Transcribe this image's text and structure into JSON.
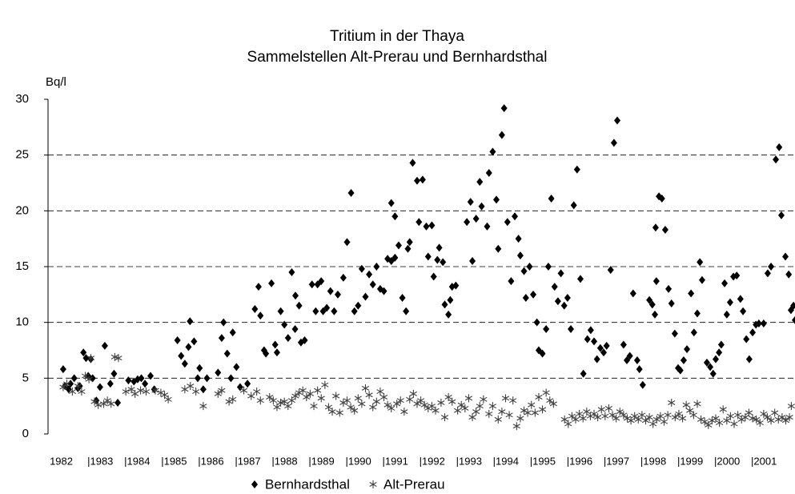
{
  "chart_data": {
    "type": "scatter",
    "title": "Tritium in der Thaya",
    "subtitle": "Sammelstellen Alt-Prerau und Bernhardsthal",
    "y_label": "Bq/l",
    "ylim": [
      0,
      30
    ],
    "yticks": [
      0,
      5,
      10,
      15,
      20,
      25,
      30
    ],
    "xlim": [
      1981.89,
      2002.15
    ],
    "xticks": [
      1982,
      {
        "value": 1983,
        "label": "|1983"
      },
      {
        "value": 1984,
        "label": "|1984"
      },
      {
        "value": 1985,
        "label": "|1985"
      },
      {
        "value": 1986,
        "label": "|1986"
      },
      {
        "value": 1987,
        "label": "|1987"
      },
      {
        "value": 1988,
        "label": "|1988"
      },
      {
        "value": 1989,
        "label": "|1989"
      },
      {
        "value": 1990,
        "label": "|1990"
      },
      {
        "value": 1991,
        "label": "|1991"
      },
      {
        "value": 1992,
        "label": "|1992"
      },
      {
        "value": 1993,
        "label": "|1993"
      },
      {
        "value": 1994,
        "label": "|1994"
      },
      {
        "value": 1995,
        "label": "|1995"
      },
      {
        "value": 1996,
        "label": "|1996"
      },
      {
        "value": 1997,
        "label": "|1997"
      },
      {
        "value": 1998,
        "label": "|1998"
      },
      {
        "value": 1999,
        "label": "|1999"
      },
      {
        "value": 2000,
        "label": "|2000"
      },
      {
        "value": 2001,
        "label": "|2001"
      }
    ],
    "grid": true,
    "legend": "bottom",
    "series": [
      {
        "name": "Bernhardsthal",
        "color": "#000000",
        "marker": "diamond",
        "x": [
          1982.3,
          1982.35,
          1982.45,
          1982.5,
          1982.6,
          1982.7,
          1982.75,
          1982.85,
          1982.92,
          1982.98,
          1983.05,
          1983.1,
          1983.2,
          1983.3,
          1983.43,
          1983.58,
          1983.68,
          1983.78,
          1984.07,
          1984.22,
          1984.32,
          1984.42,
          1984.52,
          1984.67,
          1984.77,
          1985.4,
          1985.5,
          1985.6,
          1985.7,
          1985.74,
          1985.85,
          1985.95,
          1986.0,
          1986.1,
          1986.2,
          1986.5,
          1986.6,
          1986.65,
          1986.75,
          1986.85,
          1986.9,
          1987.0,
          1987.1,
          1987.3,
          1987.5,
          1987.6,
          1987.65,
          1987.75,
          1987.8,
          1987.95,
          1988.05,
          1988.1,
          1988.2,
          1988.3,
          1988.4,
          1988.5,
          1988.59,
          1988.6,
          1988.7,
          1988.75,
          1988.85,
          1989.05,
          1989.15,
          1989.2,
          1989.3,
          1989.35,
          1989.45,
          1989.55,
          1989.65,
          1989.75,
          1989.9,
          1990.0,
          1990.11,
          1990.2,
          1990.3,
          1990.4,
          1990.5,
          1990.6,
          1990.7,
          1990.8,
          1990.9,
          1991.0,
          1991.1,
          1991.2,
          1991.3,
          1991.2,
          1991.3,
          1991.4,
          1991.5,
          1991.6,
          1991.65,
          1991.7,
          1991.78,
          1991.9,
          1991.95,
          1992.05,
          1992.15,
          1992.2,
          1992.3,
          1992.35,
          1992.45,
          1992.5,
          1992.6,
          1992.65,
          1992.75,
          1992.8,
          1992.85,
          1992.95,
          1993.25,
          1993.35,
          1993.4,
          1993.5,
          1993.6,
          1993.65,
          1993.8,
          1993.85,
          1993.95,
          1994.05,
          1994.1,
          1994.2,
          1994.26,
          1994.35,
          1994.45,
          1994.55,
          1994.65,
          1994.7,
          1994.8,
          1994.85,
          1994.95,
          1995.05,
          1995.15,
          1995.2,
          1995.3,
          1995.4,
          1995.46,
          1995.54,
          1995.63,
          1995.72,
          1995.8,
          1995.89,
          1995.98,
          1996.07,
          1996.15,
          1996.24,
          1996.33,
          1996.41,
          1996.52,
          1996.61,
          1996.7,
          1996.78,
          1996.87,
          1996.96,
          1997.04,
          1997.15,
          1997.24,
          1997.33,
          1997.5,
          1997.59,
          1997.67,
          1997.76,
          1997.87,
          1997.93,
          1998.02,
          1998.2,
          1998.28,
          1998.35,
          1998.39,
          1998.37,
          1998.46,
          1998.54,
          1998.63,
          1998.72,
          1998.8,
          1998.89,
          1998.98,
          1999.04,
          1999.13,
          1999.22,
          1999.33,
          1999.41,
          1999.5,
          1999.57,
          1999.63,
          1999.76,
          1999.85,
          1999.93,
          2000.0,
          2000.09,
          2000.15,
          2000.24,
          2000.3,
          2000.39,
          2000.48,
          2000.57,
          2000.67,
          2000.74,
          2000.83,
          2000.91,
          2001.0,
          2001.09,
          2001.17,
          2001.3,
          2001.41,
          2001.5,
          2001.63,
          2001.72,
          2001.78,
          2001.89,
          2001.98,
          2002.04,
          2002.11,
          2002.15
        ],
        "values": [
          5.8,
          4.3,
          4.0,
          4.5,
          5.0,
          4.1,
          4.3,
          7.3,
          6.8,
          5.2,
          6.7,
          5.0,
          3.0,
          4.2,
          7.9,
          4.5,
          5.4,
          2.8,
          4.8,
          4.7,
          4.9,
          5.0,
          4.5,
          5.2,
          4.0,
          8.4,
          7.0,
          6.3,
          7.8,
          10.1,
          8.3,
          5.0,
          5.9,
          4.0,
          5.0,
          5.5,
          8.6,
          10.0,
          7.2,
          5.0,
          9.1,
          6.0,
          4.2,
          4.5,
          11.2,
          13.2,
          10.6,
          7.5,
          7.2,
          13.5,
          8.0,
          7.3,
          11.0,
          9.8,
          8.6,
          14.5,
          9.4,
          12.4,
          11.5,
          8.2,
          8.4,
          13.4,
          11.0,
          13.4,
          13.7,
          11.0,
          11.3,
          12.8,
          11.0,
          12.5,
          14.0,
          17.2,
          21.6,
          11.0,
          11.5,
          14.8,
          12.3,
          14.3,
          13.4,
          15.0,
          13.0,
          12.8,
          15.7,
          15.5,
          15.8,
          20.7,
          19.5,
          16.9,
          12.2,
          11.0,
          16.6,
          17.2,
          24.3,
          22.7,
          19.0,
          22.8,
          18.6,
          15.9,
          18.7,
          14.1,
          15.6,
          16.7,
          15.4,
          11.6,
          10.7,
          12.0,
          13.2,
          13.3,
          19.0,
          20.8,
          15.5,
          19.3,
          22.6,
          20.4,
          18.6,
          23.4,
          25.3,
          21.0,
          16.6,
          26.8,
          29.2,
          19.0,
          13.7,
          19.5,
          17.5,
          16.0,
          14.6,
          12.2,
          15.0,
          12.5,
          10.0,
          7.5,
          7.2,
          9.4,
          15.0,
          21.1,
          13.2,
          11.9,
          14.4,
          11.5,
          12.2,
          9.4,
          20.5,
          23.7,
          13.9,
          5.4,
          8.5,
          9.3,
          8.3,
          6.7,
          7.7,
          7.3,
          7.9,
          14.7,
          26.1,
          28.1,
          8.0,
          6.6,
          7.0,
          12.6,
          6.6,
          5.8,
          4.4,
          12.0,
          11.6,
          10.7,
          13.7,
          18.5,
          21.3,
          21.1,
          18.3,
          13.0,
          11.7,
          9.0,
          5.9,
          5.7,
          6.6,
          7.6,
          12.6,
          9.1,
          10.8,
          15.4,
          13.8,
          6.4,
          6.0,
          5.4,
          6.7,
          7.3,
          8.0,
          13.5,
          10.7,
          11.8,
          14.1,
          14.2,
          12.1,
          11.0,
          8.5,
          6.7,
          9.1,
          9.8,
          9.9,
          9.9,
          14.4,
          15.0,
          24.6,
          25.7,
          19.6,
          15.9,
          14.3,
          11.1,
          11.5,
          10.2
        ]
      },
      {
        "name": "Alt-Prerau",
        "color": "#404040",
        "marker": "star",
        "x": [
          1982.3,
          1982.4,
          1982.55,
          1982.7,
          1982.8,
          1982.9,
          1983.0,
          1983.05,
          1983.15,
          1983.25,
          1983.4,
          1983.5,
          1983.6,
          1983.7,
          1983.8,
          1984.0,
          1984.15,
          1984.25,
          1984.4,
          1984.55,
          1984.8,
          1984.95,
          1985.05,
          1985.15,
          1985.6,
          1985.75,
          1985.9,
          1986.1,
          1986.5,
          1986.6,
          1986.8,
          1986.9,
          1987.2,
          1987.4,
          1987.55,
          1987.65,
          1987.9,
          1988.0,
          1988.1,
          1988.2,
          1988.3,
          1988.4,
          1988.5,
          1988.6,
          1988.7,
          1988.8,
          1988.9,
          1989.0,
          1989.1,
          1989.2,
          1989.3,
          1989.4,
          1989.5,
          1989.6,
          1989.7,
          1989.8,
          1989.9,
          1990.0,
          1990.1,
          1990.2,
          1990.3,
          1990.4,
          1990.5,
          1990.6,
          1990.7,
          1990.8,
          1990.9,
          1991.0,
          1991.1,
          1991.2,
          1991.35,
          1991.45,
          1991.55,
          1991.7,
          1991.8,
          1991.9,
          1992.0,
          1992.1,
          1992.2,
          1992.3,
          1992.4,
          1992.55,
          1992.65,
          1992.75,
          1992.85,
          1993.0,
          1993.1,
          1993.2,
          1993.3,
          1993.4,
          1993.5,
          1993.6,
          1993.7,
          1993.85,
          1993.95,
          1994.1,
          1994.2,
          1994.3,
          1994.4,
          1994.5,
          1994.6,
          1994.7,
          1994.8,
          1994.9,
          1995.0,
          1995.1,
          1995.2,
          1995.3,
          1995.4,
          1995.5,
          1995.6,
          1995.9,
          1996.0,
          1996.1,
          1996.2,
          1996.3,
          1996.4,
          1996.5,
          1996.6,
          1996.7,
          1996.8,
          1996.9,
          1997.0,
          1997.1,
          1997.2,
          1997.3,
          1997.4,
          1997.5,
          1997.6,
          1997.7,
          1997.8,
          1997.9,
          1998.0,
          1998.1,
          1998.2,
          1998.3,
          1998.4,
          1998.5,
          1998.6,
          1998.7,
          1998.8,
          1998.9,
          1999.0,
          1999.1,
          1999.2,
          1999.3,
          1999.4,
          1999.5,
          1999.6,
          1999.7,
          1999.8,
          1999.9,
          2000.0,
          2000.1,
          2000.2,
          2000.3,
          2000.4,
          2000.5,
          2000.6,
          2000.7,
          2000.8,
          2000.9,
          2001.0,
          2001.1,
          2001.2,
          2001.3,
          2001.4,
          2001.5,
          2001.6,
          2001.7,
          2001.8,
          2001.9,
          2002.0,
          2002.05
        ],
        "values": [
          4.2,
          4.5,
          3.8,
          4.3,
          3.8,
          5.2,
          4.9,
          6.8,
          2.9,
          2.6,
          2.7,
          3.0,
          2.7,
          6.9,
          6.8,
          3.8,
          4.0,
          3.6,
          3.9,
          3.8,
          3.9,
          3.7,
          3.5,
          3.1,
          4.0,
          4.3,
          3.8,
          2.5,
          3.6,
          3.9,
          2.9,
          3.1,
          3.9,
          3.4,
          3.8,
          3.0,
          3.3,
          3.0,
          2.4,
          2.8,
          2.9,
          2.5,
          3.0,
          3.4,
          3.7,
          3.9,
          3.3,
          3.6,
          2.5,
          3.9,
          3.2,
          4.4,
          2.4,
          2.0,
          3.4,
          1.9,
          2.8,
          3.0,
          2.4,
          2.1,
          3.2,
          2.7,
          4.1,
          3.5,
          2.4,
          2.9,
          3.8,
          3.3,
          2.6,
          2.3,
          2.7,
          3.0,
          2.0,
          3.1,
          3.6,
          2.7,
          3.0,
          2.6,
          2.3,
          2.5,
          2.1,
          2.8,
          1.5,
          3.3,
          2.9,
          2.1,
          2.6,
          2.3,
          3.2,
          1.5,
          2.0,
          2.5,
          3.1,
          1.8,
          2.5,
          1.3,
          2.0,
          3.2,
          1.7,
          3.0,
          0.7,
          1.4,
          2.1,
          1.9,
          2.6,
          1.9,
          3.3,
          2.2,
          3.7,
          3.0,
          2.7,
          1.3,
          0.9,
          1.6,
          1.3,
          1.8,
          1.4,
          2.0,
          1.6,
          1.8,
          1.5,
          2.2,
          1.6,
          2.3,
          1.7,
          1.4,
          2.0,
          1.7,
          1.4,
          1.2,
          1.6,
          1.3,
          1.7,
          1.2,
          1.5,
          0.9,
          1.3,
          1.6,
          1.1,
          1.7,
          2.8,
          1.5,
          1.8,
          1.4,
          2.6,
          2.1,
          1.7,
          2.7,
          1.3,
          1.1,
          0.8,
          1.2,
          1.4,
          1.0,
          2.2,
          1.2,
          1.6,
          0.9,
          1.7,
          1.3,
          1.5,
          1.9,
          1.4,
          1.3,
          1.0,
          1.8,
          1.5,
          1.2,
          1.9,
          1.3,
          1.5,
          1.2,
          1.5,
          2.5
        ]
      }
    ]
  }
}
